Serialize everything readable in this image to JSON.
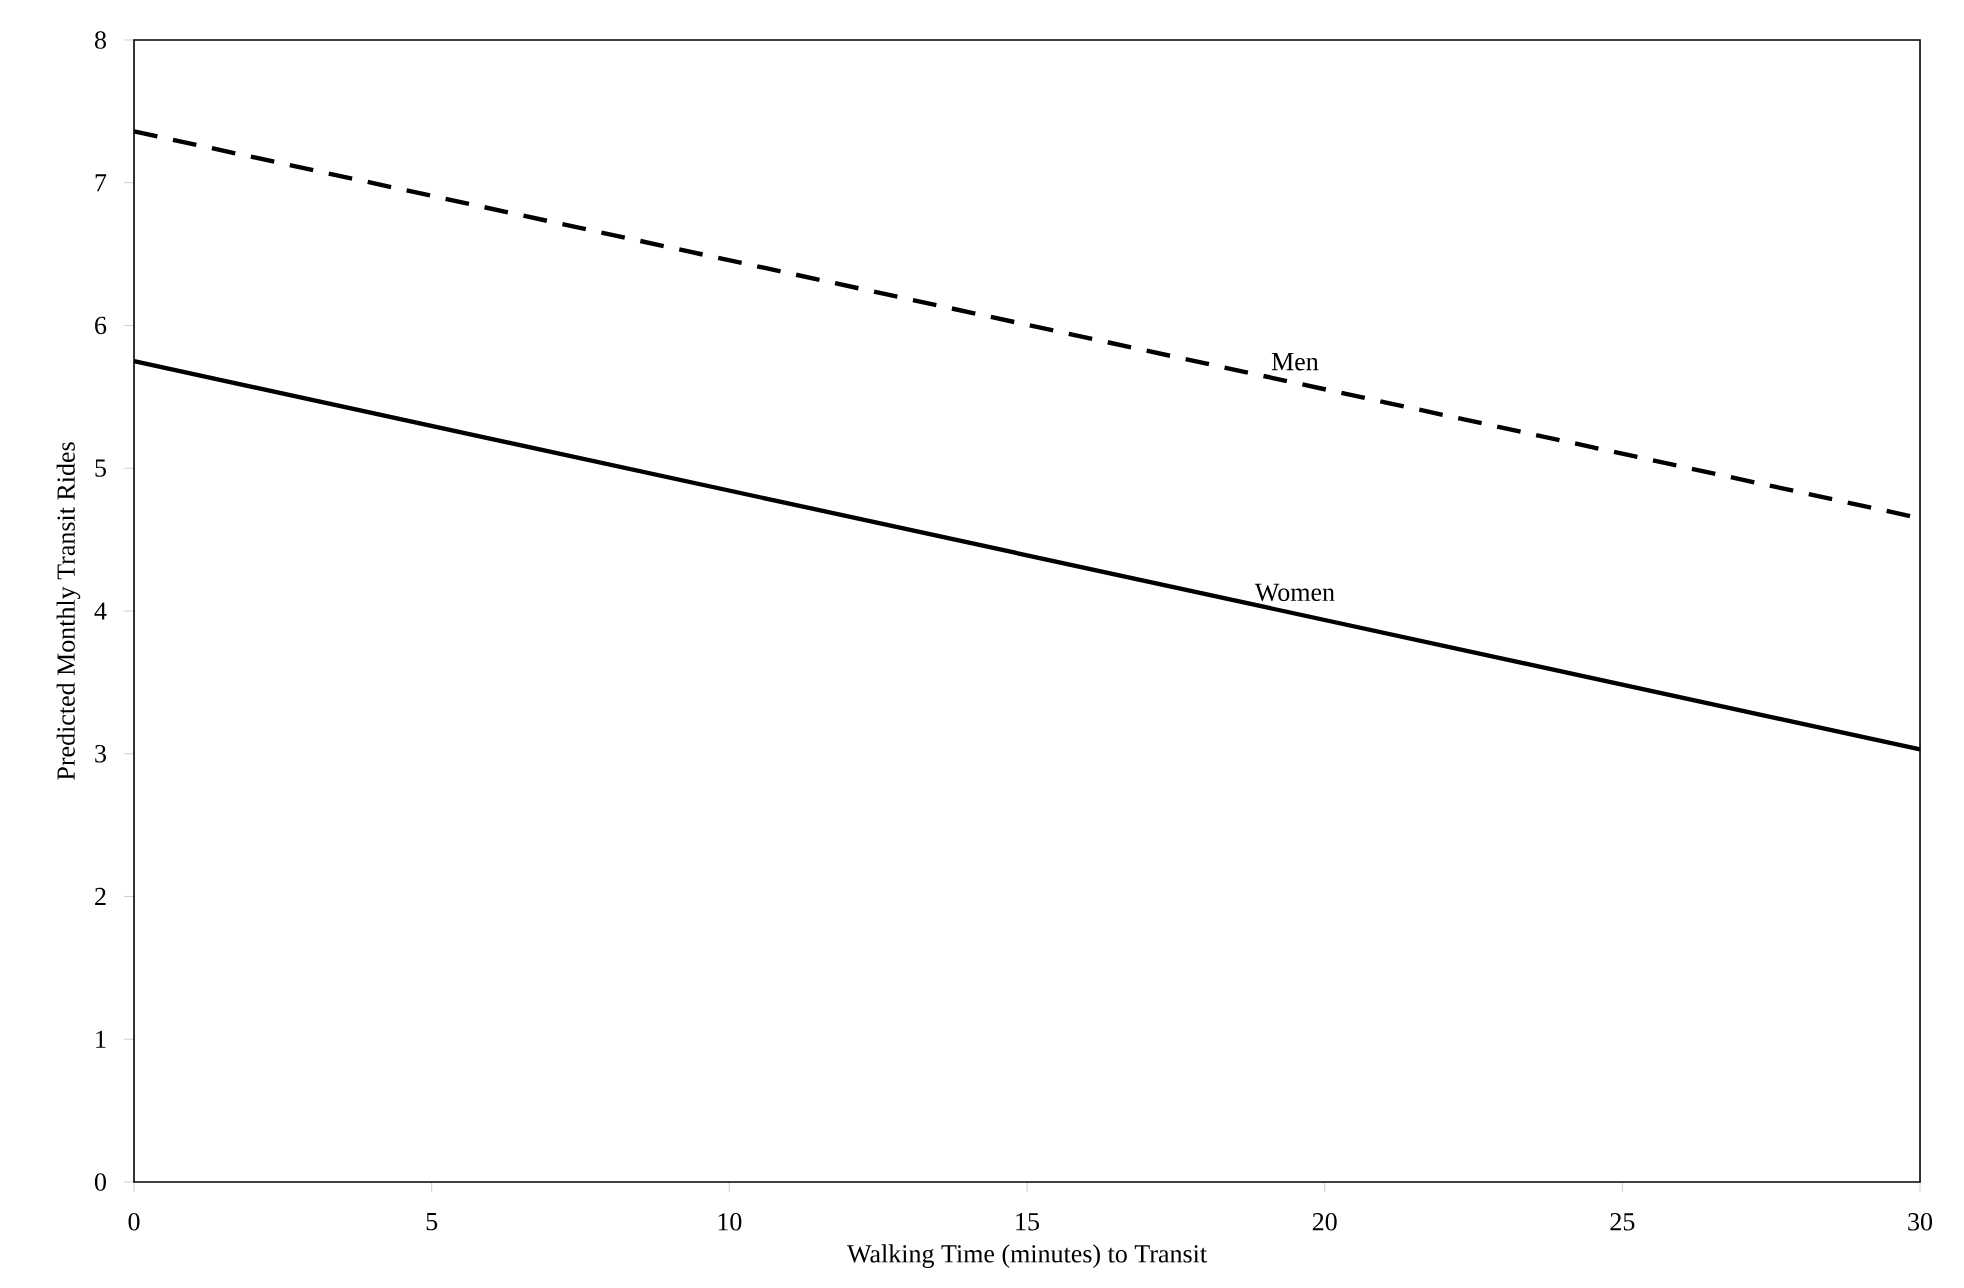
{
  "chart_data": {
    "type": "line",
    "xlabel": "Walking Time (minutes) to Transit",
    "ylabel": "Predicted Monthly Transit Rides",
    "x": [
      0,
      30
    ],
    "series": [
      {
        "name": "Men",
        "color": "#000000",
        "line_style": "dashed",
        "values": [
          7.36,
          4.65
        ]
      },
      {
        "name": "Women",
        "color": "#000000",
        "line_style": "solid",
        "values": [
          5.75,
          3.03
        ]
      }
    ],
    "xlim": [
      0,
      30
    ],
    "ylim": [
      0,
      8
    ],
    "xticks": [
      0,
      5,
      10,
      15,
      20,
      25,
      30
    ],
    "yticks": [
      0,
      1,
      2,
      3,
      4,
      5,
      6,
      7,
      8
    ],
    "marker": "none"
  }
}
